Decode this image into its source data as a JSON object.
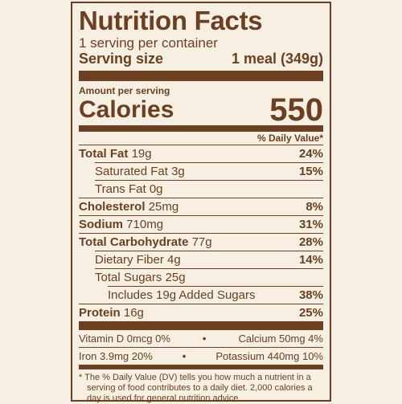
{
  "label": {
    "title": "Nutrition Facts",
    "servings": "1 serving per container",
    "serving_size": {
      "label": "Serving size",
      "value": "1 meal (349g)"
    },
    "amount_per_serving": "Amount per serving",
    "calories": {
      "label": "Calories",
      "value": "550"
    },
    "dv_header": "% Daily Value*",
    "rows": [
      {
        "name": "Total Fat",
        "amount": "19g",
        "dv": "24%"
      },
      {
        "name": "Saturated Fat",
        "amount": "3g",
        "dv": "15%"
      },
      {
        "name": "Trans Fat",
        "amount": "0g"
      },
      {
        "name": "Cholesterol",
        "amount": "25mg",
        "dv": "8%"
      },
      {
        "name": "Sodium",
        "amount": "710mg",
        "dv": "31%"
      },
      {
        "name": "Total Carbohydrate",
        "amount": "77g",
        "dv": "28%"
      },
      {
        "name": "Dietary Fiber",
        "amount": "4g",
        "dv": "14%"
      },
      {
        "name": "Total Sugars",
        "amount": "25g"
      },
      {
        "name": "Includes 19g Added Sugars",
        "dv": "38%"
      },
      {
        "name": "Protein",
        "amount": "16g",
        "dv": "25%"
      }
    ],
    "micronutrients": [
      [
        "Vitamin D 0mcg 0%",
        "Calcium 50mg 4%"
      ],
      [
        "Iron 3.9mg 20%",
        "Potassium 440mg 10%"
      ]
    ],
    "footnote": "* The % Daily Value (DV) tells you how much a nutrient in a serving of food contributes to a daily diet. 2,000 calories a day is used for general nutrition advice."
  }
}
